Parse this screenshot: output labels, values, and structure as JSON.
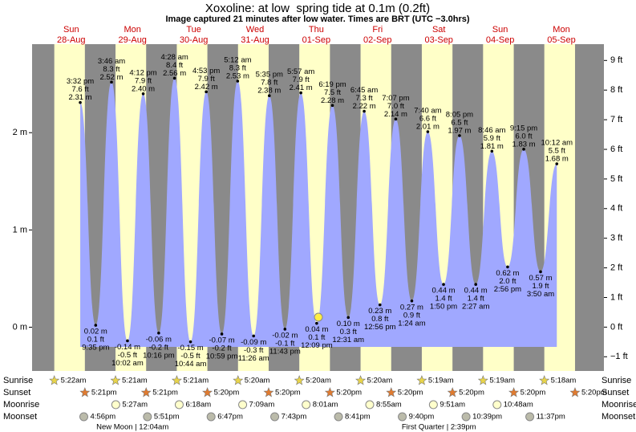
{
  "chart_data": {
    "type": "area",
    "title": "Xoxoline: at low  spring tide at 0.1m (0.2ft)",
    "subtitle": "Image captured 21 minutes after low water. Times are BRT (UTC −3.0hrs)",
    "color": "#a0a8ff",
    "ylim": [
      -0.45,
      2.91
    ],
    "yticks": [
      {
        "value": 0,
        "label": "0 m"
      },
      {
        "value": 1,
        "label": "1 m"
      },
      {
        "value": 2,
        "label": "2 m"
      }
    ],
    "y2lim": [
      -1.48,
      9.55
    ],
    "y2ticks": [
      {
        "value": -1,
        "label": "−1 ft"
      },
      {
        "value": 0,
        "label": "0 ft"
      },
      {
        "value": 1,
        "label": "1 ft"
      },
      {
        "value": 2,
        "label": "2 ft"
      },
      {
        "value": 3,
        "label": "3 ft"
      },
      {
        "value": 4,
        "label": "4 ft"
      },
      {
        "value": 5,
        "label": "5 ft"
      },
      {
        "value": 6,
        "label": "6 ft"
      },
      {
        "value": 7,
        "label": "7 ft"
      },
      {
        "value": 8,
        "label": "8 ft"
      },
      {
        "value": 9,
        "label": "9 ft"
      }
    ],
    "row_labels": {
      "sunrise": "Sunrise",
      "sunset": "Sunset",
      "moonrise": "Moonrise",
      "moonset": "Moonset"
    },
    "days": [
      {
        "name": "Sun",
        "date": "28-Aug",
        "sunrise": "5:22am",
        "sunset": "5:21pm",
        "moonset": "4:56pm",
        "tides": [
          {
            "time": "3:32 pm",
            "height": 2.31,
            "height_label": "2.31 m",
            "feet_label": "7.6 ft"
          },
          {
            "time": "9:35 pm",
            "height": 0.02,
            "height_label": "0.02 m",
            "feet_label": "0.1 ft"
          }
        ]
      },
      {
        "name": "Mon",
        "date": "29-Aug",
        "sunrise": "5:21am",
        "sunset": "5:21pm",
        "moonrise": "5:27am",
        "moonset": "5:51pm",
        "moon_phase": "New Moon | 12:04am",
        "tides": [
          {
            "time": "3:46 am",
            "height": 2.52,
            "height_label": "2.52 m",
            "feet_label": "8.3 ft"
          },
          {
            "time": "10:02 am",
            "height": -0.14,
            "height_label": "-0.14 m",
            "feet_label": "-0.5 ft"
          },
          {
            "time": "4:12 pm",
            "height": 2.4,
            "height_label": "2.40 m",
            "feet_label": "7.9 ft"
          },
          {
            "time": "10:16 pm",
            "height": -0.06,
            "height_label": "-0.06 m",
            "feet_label": "-0.2 ft"
          }
        ]
      },
      {
        "name": "Tue",
        "date": "30-Aug",
        "sunrise": "5:21am",
        "sunset": "5:20pm",
        "moonrise": "6:18am",
        "moonset": "6:47pm",
        "tides": [
          {
            "time": "4:28 am",
            "height": 2.56,
            "height_label": "2.56 m",
            "feet_label": "8.4 ft"
          },
          {
            "time": "10:44 am",
            "height": -0.15,
            "height_label": "-0.15 m",
            "feet_label": "-0.5 ft"
          },
          {
            "time": "4:53 pm",
            "height": 2.42,
            "height_label": "2.42 m",
            "feet_label": "7.9 ft"
          },
          {
            "time": "10:59 pm",
            "height": -0.07,
            "height_label": "-0.07 m",
            "feet_label": "-0.2 ft"
          }
        ]
      },
      {
        "name": "Wed",
        "date": "31-Aug",
        "sunrise": "5:20am",
        "sunset": "5:20pm",
        "moonrise": "7:09am",
        "moonset": "7:43pm",
        "tides": [
          {
            "time": "5:12 am",
            "height": 2.53,
            "height_label": "2.53 m",
            "feet_label": "8.3 ft"
          },
          {
            "time": "11:26 am",
            "height": -0.09,
            "height_label": "-0.09 m",
            "feet_label": "-0.3 ft"
          },
          {
            "time": "5:35 pm",
            "height": 2.38,
            "height_label": "2.38 m",
            "feet_label": "7.8 ft"
          },
          {
            "time": "11:43 pm",
            "height": -0.02,
            "height_label": "-0.02 m",
            "feet_label": "-0.1 ft"
          }
        ]
      },
      {
        "name": "Thu",
        "date": "01-Sep",
        "sunrise": "5:20am",
        "sunset": "5:20pm",
        "moonrise": "8:01am",
        "moonset": "8:41pm",
        "tides": [
          {
            "time": "5:57 am",
            "height": 2.41,
            "height_label": "2.41 m",
            "feet_label": "7.9 ft"
          },
          {
            "time": "12:09 pm",
            "height": 0.04,
            "height_label": "0.04 m",
            "feet_label": "0.1 ft"
          },
          {
            "time": "6:19 pm",
            "height": 2.28,
            "height_label": "2.28 m",
            "feet_label": "7.5 ft"
          }
        ]
      },
      {
        "name": "Fri",
        "date": "02-Sep",
        "sunrise": "5:20am",
        "sunset": "5:20pm",
        "moonrise": "8:55am",
        "moonset": "9:40pm",
        "tides": [
          {
            "time": "12:31 am",
            "height": 0.1,
            "height_label": "0.10 m",
            "feet_label": "0.3 ft"
          },
          {
            "time": "6:45 am",
            "height": 2.22,
            "height_label": "2.22 m",
            "feet_label": "7.3 ft"
          },
          {
            "time": "12:56 pm",
            "height": 0.23,
            "height_label": "0.23 m",
            "feet_label": "0.8 ft"
          },
          {
            "time": "7:07 pm",
            "height": 2.14,
            "height_label": "2.14 m",
            "feet_label": "7.0 ft"
          }
        ]
      },
      {
        "name": "Sat",
        "date": "03-Sep",
        "sunrise": "5:19am",
        "sunset": "5:20pm",
        "moonrise": "9:51am",
        "moonset": "10:39pm",
        "moon_phase": "First Quarter | 2:39pm",
        "tides": [
          {
            "time": "1:24 am",
            "height": 0.27,
            "height_label": "0.27 m",
            "feet_label": "0.9 ft"
          },
          {
            "time": "7:40 am",
            "height": 2.01,
            "height_label": "2.01 m",
            "feet_label": "6.6 ft"
          },
          {
            "time": "1:50 pm",
            "height": 0.44,
            "height_label": "0.44 m",
            "feet_label": "1.4 ft"
          },
          {
            "time": "8:05 pm",
            "height": 1.97,
            "height_label": "1.97 m",
            "feet_label": "6.5 ft"
          }
        ]
      },
      {
        "name": "Sun",
        "date": "04-Sep",
        "sunrise": "5:19am",
        "sunset": "5:20pm",
        "moonrise": "10:48am",
        "moonset": "11:37pm",
        "tides": [
          {
            "time": "2:27 am",
            "height": 0.44,
            "height_label": "0.44 m",
            "feet_label": "1.4 ft"
          },
          {
            "time": "8:46 am",
            "height": 1.81,
            "height_label": "1.81 m",
            "feet_label": "5.9 ft"
          },
          {
            "time": "2:56 pm",
            "height": 0.62,
            "height_label": "0.62 m",
            "feet_label": "2.0 ft"
          },
          {
            "time": "9:15 pm",
            "height": 1.83,
            "height_label": "1.83 m",
            "feet_label": "6.0 ft"
          }
        ]
      },
      {
        "name": "Mon",
        "date": "05-Sep",
        "sunrise": "5:18am",
        "sunset": "5:20pm",
        "tides": [
          {
            "time": "3:50 am",
            "height": 0.57,
            "height_label": "0.57 m",
            "feet_label": "1.9 ft"
          },
          {
            "time": "10:12 am",
            "height": 1.68,
            "height_label": "1.68 m",
            "feet_label": "5.5 ft"
          }
        ]
      }
    ]
  }
}
